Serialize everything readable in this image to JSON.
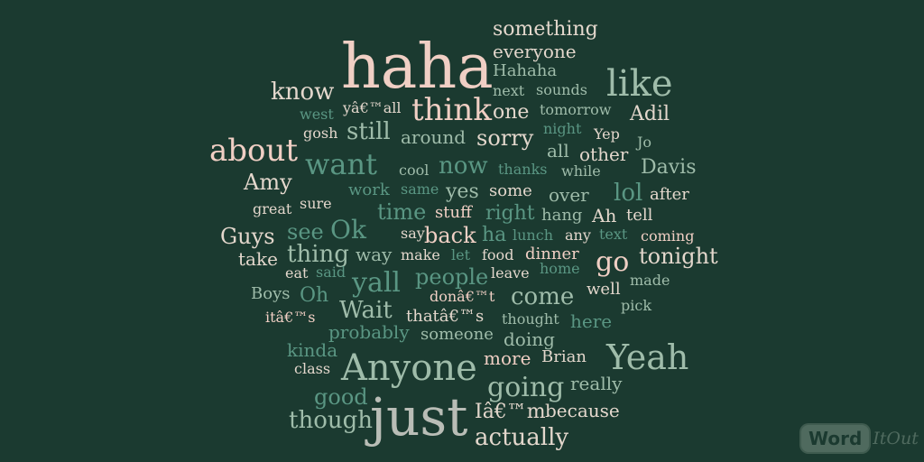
{
  "words": [
    {
      "text": "something",
      "color": "#e3d7cc",
      "weight": 2
    },
    {
      "text": "everyone",
      "color": "#e3d7cc",
      "weight": 2
    },
    {
      "text": "haha",
      "color": "#f0cfc4",
      "weight": 10
    },
    {
      "text": "Hahaha",
      "color": "#9fbcaa",
      "weight": 1
    },
    {
      "text": "like",
      "color": "#9fbcaa",
      "weight": 5
    },
    {
      "text": "know",
      "color": "#e3d7cc",
      "weight": 3
    },
    {
      "text": "next",
      "color": "#9fbcaa",
      "weight": 1
    },
    {
      "text": "sounds",
      "color": "#9fbcaa",
      "weight": 1
    },
    {
      "text": "yâ€™all",
      "color": "#e3d7cc",
      "weight": 1
    },
    {
      "text": "think",
      "color": "#f0cfc4",
      "weight": 4
    },
    {
      "text": "one",
      "color": "#e3d7cc",
      "weight": 2
    },
    {
      "text": "tomorrow",
      "color": "#9fbcaa",
      "weight": 1
    },
    {
      "text": "Adil",
      "color": "#e3d7cc",
      "weight": 2
    },
    {
      "text": "west",
      "color": "#5a9683",
      "weight": 1
    },
    {
      "text": "gosh",
      "color": "#e3d7cc",
      "weight": 1
    },
    {
      "text": "still",
      "color": "#9fbcaa",
      "weight": 3
    },
    {
      "text": "around",
      "color": "#9fbcaa",
      "weight": 2
    },
    {
      "text": "sorry",
      "color": "#e3d7cc",
      "weight": 3
    },
    {
      "text": "night",
      "color": "#5a9683",
      "weight": 1
    },
    {
      "text": "Yep",
      "color": "#e3d7cc",
      "weight": 1
    },
    {
      "text": "Jo",
      "color": "#9fbcaa",
      "weight": 1
    },
    {
      "text": "about",
      "color": "#f0cfc4",
      "weight": 5
    },
    {
      "text": "all",
      "color": "#9fbcaa",
      "weight": 2
    },
    {
      "text": "other",
      "color": "#e3d7cc",
      "weight": 2
    },
    {
      "text": "want",
      "color": "#5a9683",
      "weight": 5
    },
    {
      "text": "cool",
      "color": "#9fbcaa",
      "weight": 1
    },
    {
      "text": "now",
      "color": "#5a9683",
      "weight": 3
    },
    {
      "text": "thanks",
      "color": "#5a9683",
      "weight": 1
    },
    {
      "text": "while",
      "color": "#9fbcaa",
      "weight": 1
    },
    {
      "text": "Davis",
      "color": "#9fbcaa",
      "weight": 2
    },
    {
      "text": "Amy",
      "color": "#e3d7cc",
      "weight": 3
    },
    {
      "text": "work",
      "color": "#5a9683",
      "weight": 1
    },
    {
      "text": "same",
      "color": "#5a9683",
      "weight": 1
    },
    {
      "text": "yes",
      "color": "#9fbcaa",
      "weight": 2
    },
    {
      "text": "some",
      "color": "#e3d7cc",
      "weight": 2
    },
    {
      "text": "over",
      "color": "#9fbcaa",
      "weight": 2
    },
    {
      "text": "lol",
      "color": "#5a9683",
      "weight": 3
    },
    {
      "text": "after",
      "color": "#e3d7cc",
      "weight": 2
    },
    {
      "text": "great",
      "color": "#e3d7cc",
      "weight": 1
    },
    {
      "text": "sure",
      "color": "#e3d7cc",
      "weight": 1
    },
    {
      "text": "time",
      "color": "#5a9683",
      "weight": 3
    },
    {
      "text": "stuff",
      "color": "#f0cfc4",
      "weight": 2
    },
    {
      "text": "right",
      "color": "#5a9683",
      "weight": 2
    },
    {
      "text": "hang",
      "color": "#9fbcaa",
      "weight": 2
    },
    {
      "text": "Ah",
      "color": "#e3d7cc",
      "weight": 2
    },
    {
      "text": "tell",
      "color": "#e3d7cc",
      "weight": 2
    },
    {
      "text": "Guys",
      "color": "#e3d7cc",
      "weight": 3
    },
    {
      "text": "see",
      "color": "#5a9683",
      "weight": 3
    },
    {
      "text": "Ok",
      "color": "#5a9683",
      "weight": 4
    },
    {
      "text": "say",
      "color": "#e3d7cc",
      "weight": 1
    },
    {
      "text": "back",
      "color": "#f0cfc4",
      "weight": 3
    },
    {
      "text": "ha",
      "color": "#5a9683",
      "weight": 2
    },
    {
      "text": "lunch",
      "color": "#5a9683",
      "weight": 1
    },
    {
      "text": "any",
      "color": "#e3d7cc",
      "weight": 1
    },
    {
      "text": "text",
      "color": "#5a9683",
      "weight": 1
    },
    {
      "text": "coming",
      "color": "#f0cfc4",
      "weight": 1
    },
    {
      "text": "take",
      "color": "#e3d7cc",
      "weight": 2
    },
    {
      "text": "thing",
      "color": "#9fbcaa",
      "weight": 3
    },
    {
      "text": "way",
      "color": "#9fbcaa",
      "weight": 2
    },
    {
      "text": "make",
      "color": "#e3d7cc",
      "weight": 1
    },
    {
      "text": "let",
      "color": "#5a9683",
      "weight": 1
    },
    {
      "text": "food",
      "color": "#e3d7cc",
      "weight": 1
    },
    {
      "text": "dinner",
      "color": "#f0cfc4",
      "weight": 2
    },
    {
      "text": "go",
      "color": "#f0cfc4",
      "weight": 4
    },
    {
      "text": "tonight",
      "color": "#e3d7cc",
      "weight": 3
    },
    {
      "text": "eat",
      "color": "#e3d7cc",
      "weight": 1
    },
    {
      "text": "said",
      "color": "#5a9683",
      "weight": 1
    },
    {
      "text": "yall",
      "color": "#5a9683",
      "weight": 4
    },
    {
      "text": "people",
      "color": "#5a9683",
      "weight": 3
    },
    {
      "text": "leave",
      "color": "#e3d7cc",
      "weight": 1
    },
    {
      "text": "home",
      "color": "#5a9683",
      "weight": 1
    },
    {
      "text": "made",
      "color": "#9fbcaa",
      "weight": 1
    },
    {
      "text": "Boys",
      "color": "#9fbcaa",
      "weight": 2
    },
    {
      "text": "Oh",
      "color": "#5a9683",
      "weight": 3
    },
    {
      "text": "donâ€™t",
      "color": "#f0cfc4",
      "weight": 1
    },
    {
      "text": "come",
      "color": "#9fbcaa",
      "weight": 3
    },
    {
      "text": "well",
      "color": "#e3d7cc",
      "weight": 2
    },
    {
      "text": "pick",
      "color": "#9fbcaa",
      "weight": 1
    },
    {
      "text": "Wait",
      "color": "#9fbcaa",
      "weight": 3
    },
    {
      "text": "itâ€™s",
      "color": "#f0cfc4",
      "weight": 1
    },
    {
      "text": "thatâ€™s",
      "color": "#e3d7cc",
      "weight": 1
    },
    {
      "text": "thought",
      "color": "#9fbcaa",
      "weight": 1
    },
    {
      "text": "here",
      "color": "#5a9683",
      "weight": 2
    },
    {
      "text": "probably",
      "color": "#5a9683",
      "weight": 2
    },
    {
      "text": "someone",
      "color": "#9fbcaa",
      "weight": 2
    },
    {
      "text": "doing",
      "color": "#9fbcaa",
      "weight": 2
    },
    {
      "text": "kinda",
      "color": "#5a9683",
      "weight": 2
    },
    {
      "text": "class",
      "color": "#e3d7cc",
      "weight": 1
    },
    {
      "text": "Anyone",
      "color": "#9fbcaa",
      "weight": 6
    },
    {
      "text": "more",
      "color": "#f0cfc4",
      "weight": 2
    },
    {
      "text": "Brian",
      "color": "#e3d7cc",
      "weight": 2
    },
    {
      "text": "Yeah",
      "color": "#9fbcaa",
      "weight": 6
    },
    {
      "text": "going",
      "color": "#9fbcaa",
      "weight": 4
    },
    {
      "text": "really",
      "color": "#9fbcaa",
      "weight": 2
    },
    {
      "text": "good",
      "color": "#5a9683",
      "weight": 3
    },
    {
      "text": "just",
      "color": "#b9bdb6",
      "weight": 9
    },
    {
      "text": "Iâ€™m",
      "color": "#e3d7cc",
      "weight": 2
    },
    {
      "text": "because",
      "color": "#e3d7cc",
      "weight": 2
    },
    {
      "text": "though",
      "color": "#9fbcaa",
      "weight": 3
    },
    {
      "text": "actually",
      "color": "#e3d7cc",
      "weight": 3
    }
  ],
  "logo": {
    "word": "Word",
    "it": "It",
    "out": "Out"
  },
  "colors": {
    "background": "#1b3a30",
    "pink": "#f0cfc4",
    "light": "#e3d7cc",
    "sage": "#9fbcaa",
    "teal": "#5a9683",
    "gray": "#b9bdb6"
  }
}
